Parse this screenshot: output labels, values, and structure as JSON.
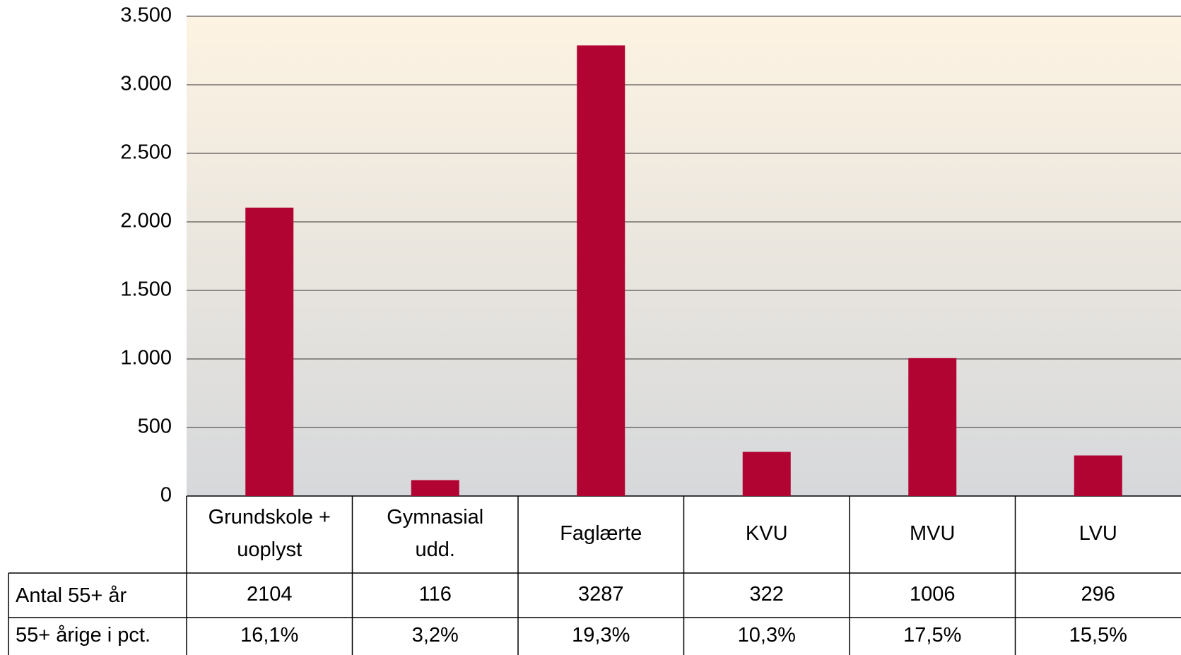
{
  "chart_data": {
    "type": "bar",
    "categories": [
      [
        "Grundskole +",
        "uoplyst"
      ],
      [
        "Gymnasial",
        "udd."
      ],
      [
        "Faglærte"
      ],
      [
        "KVU"
      ],
      [
        "MVU"
      ],
      [
        "LVU"
      ]
    ],
    "series": [
      {
        "name": "Antal 55+ år",
        "color": "#b20432",
        "values": [
          2104,
          116,
          3287,
          322,
          1006,
          296
        ]
      }
    ],
    "table_rows": [
      {
        "name": "55+ årige i pct.",
        "values": [
          16.1,
          3.2,
          19.3,
          10.3,
          17.5,
          15.5
        ],
        "value_labels": [
          "16,1%",
          "3,2%",
          "19,3%",
          "10,3%",
          "17,5%",
          "15,5%"
        ]
      }
    ],
    "ylim": [
      0,
      3500
    ],
    "yticks": [
      0,
      500,
      {
        "value": 1000,
        "label": "1.000"
      },
      {
        "value": 1500,
        "label": "1.500"
      },
      {
        "value": 2000,
        "label": "2.000"
      },
      {
        "value": 2500,
        "label": "2.500"
      },
      {
        "value": 3000,
        "label": "3.000"
      },
      {
        "value": 3500,
        "label": "3.500"
      }
    ],
    "grid": true
  }
}
